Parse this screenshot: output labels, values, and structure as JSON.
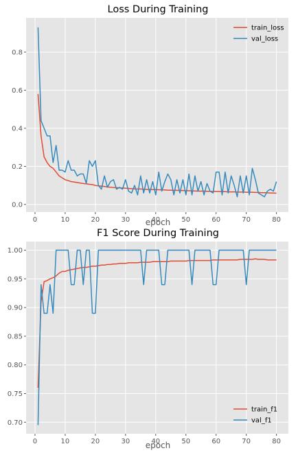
{
  "colors": {
    "train": "#e24a33",
    "val": "#348abd",
    "panel_bg": "#e5e5e5",
    "grid": "#ffffff",
    "tick_text": "#555555"
  },
  "chart_data": [
    {
      "type": "line",
      "title": "Loss During Training",
      "xlabel": "epoch",
      "ylabel": "",
      "xlim": [
        -2.95,
        83.95
      ],
      "ylim": [
        -0.04,
        0.98
      ],
      "xticks": [
        0,
        10,
        20,
        30,
        40,
        50,
        60,
        70,
        80
      ],
      "yticks": [
        0.0,
        0.2,
        0.4,
        0.6,
        0.8
      ],
      "ytick_labels": [
        "0.0",
        "0.2",
        "0.4",
        "0.6",
        "0.8"
      ],
      "grid": true,
      "legend": "upper right",
      "series": [
        {
          "name": "train_loss",
          "color": "#e24a33",
          "x": [
            1,
            2,
            3,
            4,
            5,
            6,
            7,
            8,
            9,
            10,
            11,
            12,
            13,
            14,
            15,
            16,
            17,
            18,
            19,
            20,
            21,
            22,
            23,
            24,
            25,
            26,
            27,
            28,
            29,
            30,
            31,
            32,
            33,
            34,
            35,
            36,
            37,
            38,
            39,
            40,
            41,
            42,
            43,
            44,
            45,
            46,
            47,
            48,
            49,
            50,
            51,
            52,
            53,
            54,
            55,
            56,
            57,
            58,
            59,
            60,
            61,
            62,
            63,
            64,
            65,
            66,
            67,
            68,
            69,
            70,
            71,
            72,
            73,
            74,
            75,
            76,
            77,
            78,
            79,
            80
          ],
          "values": [
            0.58,
            0.36,
            0.25,
            0.22,
            0.2,
            0.19,
            0.17,
            0.15,
            0.14,
            0.13,
            0.125,
            0.12,
            0.118,
            0.115,
            0.112,
            0.11,
            0.108,
            0.106,
            0.104,
            0.1,
            0.098,
            0.096,
            0.094,
            0.092,
            0.09,
            0.089,
            0.088,
            0.087,
            0.086,
            0.085,
            0.084,
            0.083,
            0.082,
            0.081,
            0.081,
            0.08,
            0.079,
            0.079,
            0.078,
            0.078,
            0.077,
            0.076,
            0.076,
            0.075,
            0.075,
            0.074,
            0.074,
            0.073,
            0.073,
            0.072,
            0.072,
            0.071,
            0.071,
            0.07,
            0.07,
            0.07,
            0.069,
            0.069,
            0.068,
            0.068,
            0.068,
            0.067,
            0.067,
            0.066,
            0.066,
            0.066,
            0.065,
            0.065,
            0.065,
            0.064,
            0.064,
            0.064,
            0.063,
            0.063,
            0.062,
            0.062,
            0.061,
            0.06,
            0.06,
            0.059
          ]
        },
        {
          "name": "val_loss",
          "color": "#348abd",
          "x": [
            1,
            2,
            3,
            4,
            5,
            6,
            7,
            8,
            9,
            10,
            11,
            12,
            13,
            14,
            15,
            16,
            17,
            18,
            19,
            20,
            21,
            22,
            23,
            24,
            25,
            26,
            27,
            28,
            29,
            30,
            31,
            32,
            33,
            34,
            35,
            36,
            37,
            38,
            39,
            40,
            41,
            42,
            43,
            44,
            45,
            46,
            47,
            48,
            49,
            50,
            51,
            52,
            53,
            54,
            55,
            56,
            57,
            58,
            59,
            60,
            61,
            62,
            63,
            64,
            65,
            66,
            67,
            68,
            69,
            70,
            71,
            72,
            73,
            74,
            75,
            76,
            77,
            78,
            79,
            80
          ],
          "values": [
            0.93,
            0.44,
            0.4,
            0.36,
            0.36,
            0.22,
            0.31,
            0.18,
            0.18,
            0.17,
            0.23,
            0.18,
            0.18,
            0.15,
            0.16,
            0.16,
            0.11,
            0.23,
            0.2,
            0.23,
            0.1,
            0.08,
            0.15,
            0.09,
            0.12,
            0.13,
            0.08,
            0.09,
            0.08,
            0.13,
            0.07,
            0.06,
            0.1,
            0.05,
            0.15,
            0.06,
            0.13,
            0.06,
            0.12,
            0.05,
            0.17,
            0.07,
            0.12,
            0.16,
            0.13,
            0.05,
            0.13,
            0.06,
            0.13,
            0.05,
            0.16,
            0.05,
            0.15,
            0.07,
            0.12,
            0.05,
            0.11,
            0.07,
            0.06,
            0.17,
            0.17,
            0.05,
            0.17,
            0.06,
            0.15,
            0.1,
            0.04,
            0.15,
            0.06,
            0.15,
            0.05,
            0.19,
            0.13,
            0.06,
            0.05,
            0.04,
            0.07,
            0.08,
            0.07,
            0.12
          ]
        }
      ]
    },
    {
      "type": "line",
      "title": "F1 Score During Training",
      "xlabel": "epoch",
      "ylabel": "",
      "xlim": [
        -2.95,
        83.95
      ],
      "ylim": [
        0.68,
        1.015
      ],
      "xticks": [
        0,
        10,
        20,
        30,
        40,
        50,
        60,
        70,
        80
      ],
      "yticks": [
        0.7,
        0.75,
        0.8,
        0.85,
        0.9,
        0.95,
        1.0
      ],
      "ytick_labels": [
        "0.70",
        "0.75",
        "0.80",
        "0.85",
        "0.90",
        "0.95",
        "1.00"
      ],
      "grid": true,
      "legend": "lower right",
      "series": [
        {
          "name": "train_f1",
          "color": "#e24a33",
          "x": [
            1,
            2,
            3,
            4,
            5,
            6,
            7,
            8,
            9,
            10,
            11,
            12,
            13,
            14,
            15,
            16,
            17,
            18,
            19,
            20,
            21,
            22,
            23,
            24,
            25,
            26,
            27,
            28,
            29,
            30,
            31,
            32,
            33,
            34,
            35,
            36,
            37,
            38,
            39,
            40,
            41,
            42,
            43,
            44,
            45,
            46,
            47,
            48,
            49,
            50,
            51,
            52,
            53,
            54,
            55,
            56,
            57,
            58,
            59,
            60,
            61,
            62,
            63,
            64,
            65,
            66,
            67,
            68,
            69,
            70,
            71,
            72,
            73,
            74,
            75,
            76,
            77,
            78,
            79,
            80
          ],
          "values": [
            0.76,
            0.91,
            0.945,
            0.947,
            0.95,
            0.952,
            0.955,
            0.96,
            0.963,
            0.963,
            0.965,
            0.966,
            0.967,
            0.968,
            0.969,
            0.97,
            0.97,
            0.971,
            0.972,
            0.972,
            0.973,
            0.974,
            0.974,
            0.975,
            0.975,
            0.976,
            0.976,
            0.977,
            0.977,
            0.977,
            0.978,
            0.978,
            0.978,
            0.978,
            0.979,
            0.979,
            0.979,
            0.979,
            0.98,
            0.98,
            0.98,
            0.98,
            0.98,
            0.98,
            0.981,
            0.981,
            0.981,
            0.981,
            0.981,
            0.981,
            0.982,
            0.982,
            0.982,
            0.982,
            0.982,
            0.982,
            0.982,
            0.982,
            0.983,
            0.983,
            0.983,
            0.983,
            0.983,
            0.983,
            0.983,
            0.983,
            0.983,
            0.984,
            0.984,
            0.984,
            0.984,
            0.984,
            0.985,
            0.984,
            0.984,
            0.984,
            0.983,
            0.983,
            0.983,
            0.983
          ]
        },
        {
          "name": "val_f1",
          "color": "#348abd",
          "x": [
            1,
            2,
            3,
            4,
            5,
            6,
            7,
            8,
            9,
            10,
            11,
            12,
            13,
            14,
            15,
            16,
            17,
            18,
            19,
            20,
            21,
            22,
            23,
            24,
            25,
            26,
            27,
            28,
            29,
            30,
            31,
            32,
            33,
            34,
            35,
            36,
            37,
            38,
            39,
            40,
            41,
            42,
            43,
            44,
            45,
            46,
            47,
            48,
            49,
            50,
            51,
            52,
            53,
            54,
            55,
            56,
            57,
            58,
            59,
            60,
            61,
            62,
            63,
            64,
            65,
            66,
            67,
            68,
            69,
            70,
            71,
            72,
            73,
            74,
            75,
            76,
            77,
            78,
            79,
            80
          ],
          "values": [
            0.695,
            0.94,
            0.89,
            0.89,
            0.94,
            0.89,
            1.0,
            1.0,
            1.0,
            1.0,
            1.0,
            0.94,
            0.94,
            1.0,
            1.0,
            0.94,
            1.0,
            1.0,
            0.89,
            0.89,
            1.0,
            1.0,
            1.0,
            1.0,
            1.0,
            1.0,
            1.0,
            1.0,
            1.0,
            1.0,
            1.0,
            1.0,
            1.0,
            1.0,
            1.0,
            0.94,
            1.0,
            1.0,
            1.0,
            1.0,
            1.0,
            0.94,
            0.94,
            1.0,
            1.0,
            1.0,
            1.0,
            1.0,
            1.0,
            1.0,
            1.0,
            0.94,
            1.0,
            1.0,
            1.0,
            1.0,
            1.0,
            1.0,
            0.94,
            0.94,
            1.0,
            1.0,
            1.0,
            1.0,
            1.0,
            1.0,
            1.0,
            1.0,
            1.0,
            0.94,
            1.0,
            1.0,
            1.0,
            1.0,
            1.0,
            1.0,
            1.0,
            1.0,
            1.0,
            1.0
          ]
        }
      ]
    }
  ]
}
